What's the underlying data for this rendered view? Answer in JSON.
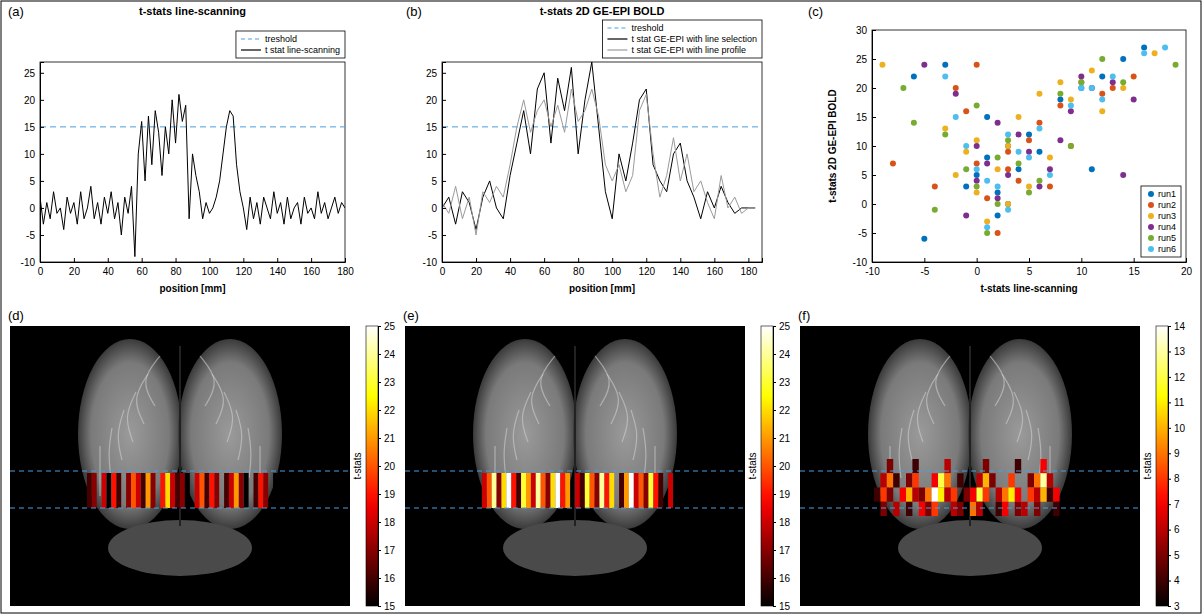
{
  "chart_data": [
    {
      "type": "line",
      "label": "(a)",
      "title": "t-stats line-scanning",
      "xlabel": "position [mm]",
      "xlim": [
        0,
        180
      ],
      "xticks": [
        0,
        20,
        40,
        60,
        80,
        100,
        120,
        140,
        160,
        180
      ],
      "ylim": [
        -10,
        27
      ],
      "yticks": [
        -10,
        -5,
        0,
        5,
        10,
        15,
        20,
        25
      ],
      "grid": false,
      "legend": "top-right",
      "series": [
        {
          "name": "treshold",
          "color": "#4a9fe0",
          "line_style": "dashed",
          "x": [
            0,
            180
          ],
          "values": [
            15,
            15
          ]
        },
        {
          "name": "t stat line-scanning",
          "color": "#000000",
          "line_style": "solid",
          "x": [
            0,
            2,
            4,
            6,
            8,
            10,
            12,
            14,
            16,
            18,
            20,
            22,
            24,
            26,
            28,
            30,
            32,
            34,
            36,
            38,
            40,
            42,
            44,
            46,
            48,
            50,
            52,
            54,
            56,
            58,
            60,
            62,
            64,
            66,
            68,
            70,
            72,
            74,
            76,
            78,
            80,
            82,
            84,
            86,
            88,
            90,
            92,
            94,
            96,
            98,
            100,
            102,
            104,
            106,
            108,
            110,
            112,
            114,
            116,
            118,
            120,
            122,
            124,
            126,
            128,
            130,
            132,
            134,
            136,
            138,
            140,
            142,
            144,
            146,
            148,
            150,
            152,
            154,
            156,
            158,
            160,
            162,
            164,
            166,
            168,
            170,
            172,
            174,
            176,
            178,
            180
          ],
          "values": [
            2,
            -3,
            1,
            -2,
            3,
            -1,
            0,
            -4,
            2,
            -1,
            1,
            -3,
            3,
            -2,
            0,
            4,
            -2,
            1,
            -3,
            2,
            -1,
            3,
            -2,
            1,
            -5,
            2,
            -1,
            4,
            -9,
            10,
            16,
            5,
            17,
            8,
            18,
            14,
            6,
            15,
            10,
            20,
            12,
            21,
            16,
            19,
            -2,
            10,
            6,
            3,
            -2,
            1,
            -1,
            0,
            2,
            5,
            10,
            15,
            18,
            17,
            8,
            3,
            0,
            -4,
            2,
            -2,
            1,
            -3,
            2,
            0,
            -2,
            3,
            -1,
            1,
            -3,
            2,
            -2,
            0,
            1,
            -3,
            2,
            -1,
            0,
            -2,
            3,
            -1,
            1,
            -2,
            0,
            2,
            -1,
            1,
            0
          ]
        }
      ]
    },
    {
      "type": "line",
      "label": "(b)",
      "title": "t-stats 2D GE-EPI BOLD",
      "xlabel": "position [mm]",
      "xlim": [
        0,
        188
      ],
      "xticks": [
        0,
        20,
        40,
        60,
        80,
        100,
        120,
        140,
        160,
        180
      ],
      "ylim": [
        -10,
        27
      ],
      "yticks": [
        -10,
        -5,
        0,
        5,
        10,
        15,
        20,
        25
      ],
      "grid": false,
      "legend": "top-right",
      "series": [
        {
          "name": "treshold",
          "color": "#4a9fe0",
          "line_style": "dashed",
          "x": [
            0,
            188
          ],
          "values": [
            15,
            15
          ]
        },
        {
          "name": "t stat GE-EPI with line selection",
          "color": "#000000",
          "line_style": "solid",
          "x": [
            0,
            4,
            8,
            12,
            16,
            20,
            24,
            28,
            32,
            36,
            40,
            44,
            48,
            52,
            56,
            60,
            64,
            68,
            72,
            76,
            80,
            84,
            88,
            92,
            96,
            100,
            104,
            108,
            112,
            116,
            120,
            124,
            128,
            132,
            136,
            140,
            144,
            148,
            152,
            156,
            160,
            164,
            168,
            172,
            176,
            180,
            184
          ],
          "values": [
            0,
            2,
            -3,
            3,
            1,
            -4,
            2,
            5,
            0,
            -2,
            6,
            12,
            18,
            10,
            22,
            25,
            12,
            24,
            18,
            26,
            10,
            20,
            27,
            15,
            3,
            -2,
            10,
            5,
            12,
            20,
            22,
            8,
            5,
            3,
            10,
            12,
            5,
            2,
            -2,
            3,
            0,
            4,
            1,
            -1,
            0,
            0,
            0
          ]
        },
        {
          "name": "t stat GE-EPI with line profile",
          "color": "#9a9a9a",
          "line_style": "solid",
          "x": [
            0,
            4,
            8,
            12,
            16,
            20,
            24,
            28,
            32,
            36,
            40,
            44,
            48,
            52,
            56,
            60,
            64,
            68,
            72,
            76,
            80,
            84,
            88,
            92,
            96,
            100,
            104,
            108,
            112,
            116,
            120,
            124,
            128,
            132,
            136,
            140,
            144,
            148,
            152,
            156,
            160,
            164,
            168,
            172,
            176,
            180,
            184
          ],
          "values": [
            1,
            -1,
            4,
            -2,
            2,
            -5,
            3,
            1,
            4,
            2,
            8,
            15,
            20,
            14,
            18,
            20,
            15,
            19,
            14,
            22,
            16,
            18,
            22,
            17,
            8,
            5,
            8,
            3,
            6,
            18,
            21,
            10,
            2,
            6,
            13,
            5,
            10,
            3,
            5,
            1,
            -2,
            6,
            0,
            2,
            -1,
            0,
            0
          ]
        }
      ]
    },
    {
      "type": "scatter",
      "label": "(c)",
      "xlabel": "t-stats line-scanning",
      "ylabel": "t-stats 2D GE-EPI BOLD",
      "xlim": [
        -10,
        20
      ],
      "xticks": [
        -10,
        -5,
        0,
        5,
        10,
        15,
        20
      ],
      "ylim": [
        -10,
        30
      ],
      "yticks": [
        -10,
        -5,
        0,
        5,
        10,
        15,
        20,
        25,
        30
      ],
      "grid": false,
      "legend": "bottom-right",
      "series": [
        {
          "name": "run1",
          "color": "#0072bd",
          "marker": "circle",
          "x": [
            -5,
            -3,
            0,
            1,
            2,
            3,
            4,
            -1,
            5,
            8,
            10,
            12,
            14,
            16,
            2,
            -6,
            1,
            3,
            6,
            11
          ],
          "values": [
            -6,
            24,
            5,
            8,
            2,
            10,
            6,
            3,
            12,
            18,
            20,
            22,
            25,
            27,
            -2,
            22,
            15,
            0,
            9,
            6
          ]
        },
        {
          "name": "run2",
          "color": "#d95319",
          "marker": "circle",
          "x": [
            -4,
            -2,
            0,
            1,
            3,
            4,
            6,
            8,
            10,
            12,
            15,
            -8,
            2,
            5,
            -1,
            3,
            9,
            13,
            0,
            7
          ],
          "values": [
            3,
            20,
            7,
            1,
            9,
            4,
            14,
            17,
            21,
            19,
            22,
            7,
            -5,
            11,
            16,
            6,
            10,
            20,
            24,
            3
          ]
        },
        {
          "name": "run3",
          "color": "#edb120",
          "marker": "circle",
          "x": [
            -9,
            -3,
            -1,
            0,
            2,
            3,
            5,
            7,
            9,
            11,
            14,
            17,
            1,
            4,
            -2,
            6,
            12,
            0,
            3,
            8
          ],
          "values": [
            24,
            13,
            9,
            2,
            6,
            10,
            3,
            8,
            18,
            23,
            20,
            26,
            -3,
            15,
            5,
            19,
            16,
            11,
            0,
            21
          ]
        },
        {
          "name": "run4",
          "color": "#7e2f8e",
          "marker": "circle",
          "x": [
            -5,
            -2,
            0,
            1,
            2,
            4,
            5,
            7,
            9,
            10,
            13,
            15,
            -1,
            3,
            6,
            11,
            0,
            2,
            8,
            14
          ],
          "values": [
            24,
            19,
            4,
            7,
            1,
            12,
            9,
            6,
            16,
            22,
            21,
            18,
            -2,
            5,
            3,
            20,
            10,
            14,
            11,
            5
          ]
        },
        {
          "name": "run5",
          "color": "#77ac30",
          "marker": "circle",
          "x": [
            -7,
            -6,
            -4,
            -1,
            0,
            2,
            3,
            5,
            8,
            10,
            12,
            19,
            1,
            4,
            -3,
            6,
            14,
            0,
            2,
            9
          ],
          "values": [
            20,
            14,
            -1,
            6,
            3,
            8,
            11,
            2,
            19,
            21,
            25,
            24,
            -5,
            7,
            12,
            4,
            21,
            17,
            0,
            10
          ]
        },
        {
          "name": "run6",
          "color": "#4dbeee",
          "marker": "circle",
          "x": [
            -3,
            -1,
            0,
            1,
            3,
            4,
            6,
            9,
            11,
            13,
            16,
            18,
            2,
            5,
            -2,
            7,
            12,
            1,
            3,
            10
          ],
          "values": [
            22,
            10,
            6,
            4,
            -1,
            9,
            13,
            17,
            20,
            22,
            26,
            27,
            3,
            8,
            15,
            5,
            18,
            -4,
            12,
            20
          ]
        }
      ]
    },
    {
      "type": "heatmap",
      "label": "(d)",
      "colorbar_label": "t-stats",
      "color_range": [
        15,
        25
      ],
      "color_ticks": [
        15,
        16,
        17,
        18,
        19,
        20,
        21,
        22,
        23,
        24,
        25
      ],
      "cells": [
        null,
        16,
        17,
        null,
        18,
        15,
        19,
        16,
        null,
        17,
        20,
        18,
        16,
        21,
        17,
        null,
        19,
        22,
        18,
        16,
        17,
        15,
        null,
        18,
        20,
        16,
        19,
        17,
        null,
        16,
        18,
        21,
        17,
        15,
        null,
        16,
        19,
        17,
        null,
        15
      ]
    },
    {
      "type": "heatmap",
      "label": "(e)",
      "colorbar_label": "t-stats",
      "color_range": [
        15,
        25
      ],
      "color_ticks": [
        15,
        16,
        17,
        18,
        19,
        20,
        21,
        22,
        23,
        24,
        25
      ],
      "cells": [
        null,
        18,
        20,
        24,
        17,
        22,
        25,
        19,
        16,
        23,
        21,
        18,
        24,
        20,
        17,
        22,
        25,
        19,
        21,
        null,
        18,
        16,
        23,
        20,
        17,
        24,
        19,
        22,
        null,
        16,
        21,
        25,
        18,
        20,
        17,
        23,
        19,
        16,
        null,
        18
      ]
    },
    {
      "type": "heatmap",
      "label": "(f)",
      "colorbar_label": "t-stats",
      "color_range": [
        3,
        14
      ],
      "color_ticks": [
        3,
        4,
        5,
        6,
        7,
        8,
        9,
        10,
        11,
        12,
        13,
        14
      ],
      "cells": [
        [
          null,
          null,
          5,
          null,
          null,
          null,
          4,
          null,
          null,
          null,
          null,
          6,
          null,
          null,
          null,
          null,
          null,
          5,
          null,
          null,
          null,
          null,
          4,
          null,
          null,
          null,
          7,
          null,
          null,
          null
        ],
        [
          null,
          6,
          9,
          4,
          null,
          5,
          8,
          null,
          null,
          7,
          12,
          9,
          null,
          4,
          null,
          null,
          6,
          10,
          5,
          null,
          null,
          8,
          null,
          null,
          5,
          9,
          13,
          6,
          null,
          null
        ],
        [
          4,
          8,
          5,
          null,
          7,
          10,
          6,
          5,
          9,
          14,
          11,
          6,
          8,
          null,
          5,
          7,
          12,
          8,
          null,
          6,
          9,
          11,
          7,
          null,
          8,
          6,
          10,
          4,
          7,
          null
        ],
        [
          null,
          5,
          null,
          6,
          null,
          4,
          null,
          7,
          5,
          8,
          null,
          null,
          6,
          5,
          null,
          9,
          6,
          null,
          null,
          4,
          7,
          null,
          5,
          6,
          null,
          5,
          null,
          null,
          4,
          null
        ]
      ]
    }
  ]
}
